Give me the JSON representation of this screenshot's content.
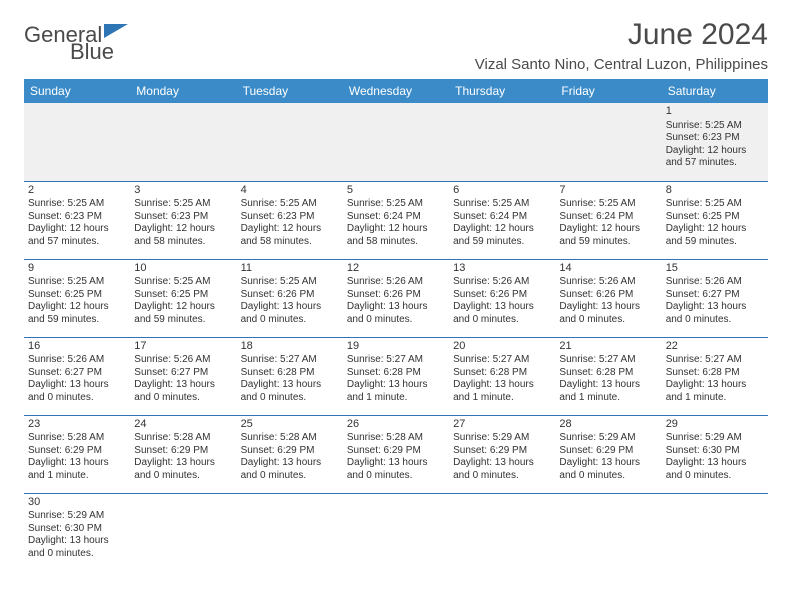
{
  "brand": {
    "part1": "General",
    "part2": "Blue"
  },
  "title": "June 2024",
  "location": "Vizal Santo Nino, Central Luzon, Philippines",
  "colors": {
    "header_bg": "#3b8bc9",
    "header_text": "#ffffff",
    "border": "#2e75b6",
    "text": "#333333",
    "brand_gray": "#4a4a4a",
    "brand_blue": "#2e75b6",
    "blank_bg": "#f0f0f0"
  },
  "day_names": [
    "Sunday",
    "Monday",
    "Tuesday",
    "Wednesday",
    "Thursday",
    "Friday",
    "Saturday"
  ],
  "weeks": [
    [
      {
        "blank": true
      },
      {
        "blank": true
      },
      {
        "blank": true
      },
      {
        "blank": true
      },
      {
        "blank": true
      },
      {
        "blank": true
      },
      {
        "n": "1",
        "sr": "Sunrise: 5:25 AM",
        "ss": "Sunset: 6:23 PM",
        "dl": "Daylight: 12 hours and 57 minutes."
      }
    ],
    [
      {
        "n": "2",
        "sr": "Sunrise: 5:25 AM",
        "ss": "Sunset: 6:23 PM",
        "dl": "Daylight: 12 hours and 57 minutes."
      },
      {
        "n": "3",
        "sr": "Sunrise: 5:25 AM",
        "ss": "Sunset: 6:23 PM",
        "dl": "Daylight: 12 hours and 58 minutes."
      },
      {
        "n": "4",
        "sr": "Sunrise: 5:25 AM",
        "ss": "Sunset: 6:23 PM",
        "dl": "Daylight: 12 hours and 58 minutes."
      },
      {
        "n": "5",
        "sr": "Sunrise: 5:25 AM",
        "ss": "Sunset: 6:24 PM",
        "dl": "Daylight: 12 hours and 58 minutes."
      },
      {
        "n": "6",
        "sr": "Sunrise: 5:25 AM",
        "ss": "Sunset: 6:24 PM",
        "dl": "Daylight: 12 hours and 59 minutes."
      },
      {
        "n": "7",
        "sr": "Sunrise: 5:25 AM",
        "ss": "Sunset: 6:24 PM",
        "dl": "Daylight: 12 hours and 59 minutes."
      },
      {
        "n": "8",
        "sr": "Sunrise: 5:25 AM",
        "ss": "Sunset: 6:25 PM",
        "dl": "Daylight: 12 hours and 59 minutes."
      }
    ],
    [
      {
        "n": "9",
        "sr": "Sunrise: 5:25 AM",
        "ss": "Sunset: 6:25 PM",
        "dl": "Daylight: 12 hours and 59 minutes."
      },
      {
        "n": "10",
        "sr": "Sunrise: 5:25 AM",
        "ss": "Sunset: 6:25 PM",
        "dl": "Daylight: 12 hours and 59 minutes."
      },
      {
        "n": "11",
        "sr": "Sunrise: 5:25 AM",
        "ss": "Sunset: 6:26 PM",
        "dl": "Daylight: 13 hours and 0 minutes."
      },
      {
        "n": "12",
        "sr": "Sunrise: 5:26 AM",
        "ss": "Sunset: 6:26 PM",
        "dl": "Daylight: 13 hours and 0 minutes."
      },
      {
        "n": "13",
        "sr": "Sunrise: 5:26 AM",
        "ss": "Sunset: 6:26 PM",
        "dl": "Daylight: 13 hours and 0 minutes."
      },
      {
        "n": "14",
        "sr": "Sunrise: 5:26 AM",
        "ss": "Sunset: 6:26 PM",
        "dl": "Daylight: 13 hours and 0 minutes."
      },
      {
        "n": "15",
        "sr": "Sunrise: 5:26 AM",
        "ss": "Sunset: 6:27 PM",
        "dl": "Daylight: 13 hours and 0 minutes."
      }
    ],
    [
      {
        "n": "16",
        "sr": "Sunrise: 5:26 AM",
        "ss": "Sunset: 6:27 PM",
        "dl": "Daylight: 13 hours and 0 minutes."
      },
      {
        "n": "17",
        "sr": "Sunrise: 5:26 AM",
        "ss": "Sunset: 6:27 PM",
        "dl": "Daylight: 13 hours and 0 minutes."
      },
      {
        "n": "18",
        "sr": "Sunrise: 5:27 AM",
        "ss": "Sunset: 6:28 PM",
        "dl": "Daylight: 13 hours and 0 minutes."
      },
      {
        "n": "19",
        "sr": "Sunrise: 5:27 AM",
        "ss": "Sunset: 6:28 PM",
        "dl": "Daylight: 13 hours and 1 minute."
      },
      {
        "n": "20",
        "sr": "Sunrise: 5:27 AM",
        "ss": "Sunset: 6:28 PM",
        "dl": "Daylight: 13 hours and 1 minute."
      },
      {
        "n": "21",
        "sr": "Sunrise: 5:27 AM",
        "ss": "Sunset: 6:28 PM",
        "dl": "Daylight: 13 hours and 1 minute."
      },
      {
        "n": "22",
        "sr": "Sunrise: 5:27 AM",
        "ss": "Sunset: 6:28 PM",
        "dl": "Daylight: 13 hours and 1 minute."
      }
    ],
    [
      {
        "n": "23",
        "sr": "Sunrise: 5:28 AM",
        "ss": "Sunset: 6:29 PM",
        "dl": "Daylight: 13 hours and 1 minute."
      },
      {
        "n": "24",
        "sr": "Sunrise: 5:28 AM",
        "ss": "Sunset: 6:29 PM",
        "dl": "Daylight: 13 hours and 0 minutes."
      },
      {
        "n": "25",
        "sr": "Sunrise: 5:28 AM",
        "ss": "Sunset: 6:29 PM",
        "dl": "Daylight: 13 hours and 0 minutes."
      },
      {
        "n": "26",
        "sr": "Sunrise: 5:28 AM",
        "ss": "Sunset: 6:29 PM",
        "dl": "Daylight: 13 hours and 0 minutes."
      },
      {
        "n": "27",
        "sr": "Sunrise: 5:29 AM",
        "ss": "Sunset: 6:29 PM",
        "dl": "Daylight: 13 hours and 0 minutes."
      },
      {
        "n": "28",
        "sr": "Sunrise: 5:29 AM",
        "ss": "Sunset: 6:29 PM",
        "dl": "Daylight: 13 hours and 0 minutes."
      },
      {
        "n": "29",
        "sr": "Sunrise: 5:29 AM",
        "ss": "Sunset: 6:30 PM",
        "dl": "Daylight: 13 hours and 0 minutes."
      }
    ],
    [
      {
        "n": "30",
        "sr": "Sunrise: 5:29 AM",
        "ss": "Sunset: 6:30 PM",
        "dl": "Daylight: 13 hours and 0 minutes."
      },
      {
        "blank": true
      },
      {
        "blank": true
      },
      {
        "blank": true
      },
      {
        "blank": true
      },
      {
        "blank": true
      },
      {
        "blank": true
      }
    ]
  ]
}
